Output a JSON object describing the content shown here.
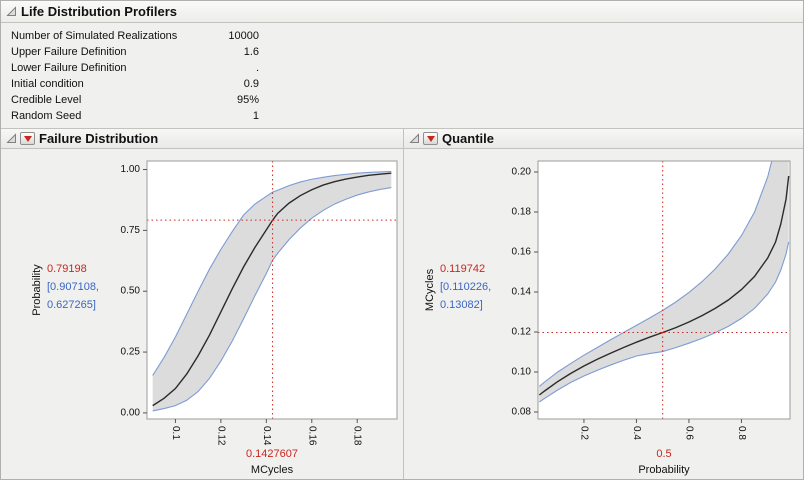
{
  "window": {
    "title": "Life Distribution Profilers"
  },
  "parameters": [
    {
      "label": "Number of Simulated Realizations",
      "value": "10000"
    },
    {
      "label": "Upper Failure Definition",
      "value": "1.6"
    },
    {
      "label": "Lower Failure Definition",
      "value": "."
    },
    {
      "label": "Initial condition",
      "value": "0.9"
    },
    {
      "label": "Credible Level",
      "value": "95%"
    },
    {
      "label": "Random Seed",
      "value": "1"
    }
  ],
  "panels": [
    {
      "title": "Failure Distribution"
    },
    {
      "title": "Quantile"
    }
  ],
  "colors": {
    "estimate_red": "#c8271f",
    "ci_blue": "#3a66c4",
    "band_fill": "#dcdcdc",
    "band_edge": "#7e9cd4",
    "curve": "#2b2b2b",
    "crosshair": "#c8271f",
    "frame": "#9b9b9b",
    "tick": "#555555"
  },
  "chart_data": [
    {
      "type": "line",
      "title": "Failure Distribution",
      "xlabel": "MCycles",
      "ylabel": "Probability",
      "xlim": [
        0.0875,
        0.1975
      ],
      "ylim": [
        -0.025,
        1.035
      ],
      "grid": false,
      "legend": "none",
      "xticks": [
        0.1,
        0.12,
        0.14,
        0.16,
        0.18
      ],
      "xtick_labels": [
        "0.1",
        "0.12",
        "0.14",
        "0.16",
        "0.18"
      ],
      "yticks": [
        0,
        0.25,
        0.5,
        0.75,
        1.0
      ],
      "ytick_labels": [
        "0.00",
        "0.25",
        "0.50",
        "0.75",
        "1.00"
      ],
      "crosshair": {
        "x": 0.1427607,
        "y": 0.79198
      },
      "labels": {
        "y_value": "0.79198",
        "y_ci_line1": "[0.907108,",
        "y_ci_line2": "0.627265]",
        "x_value": "0.1427607"
      },
      "x": [
        0.09,
        0.095,
        0.1,
        0.105,
        0.11,
        0.115,
        0.12,
        0.125,
        0.13,
        0.135,
        0.14,
        0.1427607,
        0.145,
        0.15,
        0.155,
        0.16,
        0.165,
        0.17,
        0.175,
        0.18,
        0.185,
        0.19,
        0.195
      ],
      "series": [
        {
          "name": "estimate",
          "values": [
            0.03,
            0.06,
            0.1,
            0.16,
            0.235,
            0.32,
            0.415,
            0.51,
            0.6,
            0.68,
            0.752,
            0.792,
            0.82,
            0.862,
            0.893,
            0.917,
            0.936,
            0.95,
            0.961,
            0.969,
            0.976,
            0.981,
            0.985
          ]
        },
        {
          "name": "ci_upper",
          "values": [
            0.154,
            0.228,
            0.312,
            0.406,
            0.5,
            0.591,
            0.672,
            0.745,
            0.813,
            0.858,
            0.89,
            0.907,
            0.915,
            0.934,
            0.949,
            0.96,
            0.968,
            0.975,
            0.98,
            0.985,
            0.988,
            0.99,
            0.992
          ]
        },
        {
          "name": "ci_lower",
          "values": [
            0.008,
            0.018,
            0.03,
            0.052,
            0.088,
            0.142,
            0.213,
            0.295,
            0.387,
            0.482,
            0.573,
            0.627,
            0.656,
            0.712,
            0.76,
            0.8,
            0.832,
            0.858,
            0.878,
            0.895,
            0.908,
            0.918,
            0.926
          ]
        }
      ]
    },
    {
      "type": "line",
      "title": "Quantile",
      "xlabel": "Probability",
      "ylabel": "MCycles",
      "xlim": [
        0.025,
        0.985
      ],
      "ylim": [
        0.0765,
        0.2055
      ],
      "grid": false,
      "legend": "none",
      "xticks": [
        0.2,
        0.4,
        0.6,
        0.8
      ],
      "xtick_labels": [
        "0.2",
        "0.4",
        "0.6",
        "0.8"
      ],
      "yticks": [
        0.08,
        0.1,
        0.12,
        0.14,
        0.16,
        0.18,
        0.2
      ],
      "ytick_labels": [
        "0.08",
        "0.10",
        "0.12",
        "0.14",
        "0.16",
        "0.18",
        "0.20"
      ],
      "crosshair": {
        "x": 0.5,
        "y": 0.119742
      },
      "labels": {
        "y_value": "0.119742",
        "y_ci_line1": "[0.110226,",
        "y_ci_line2": "0.13082]",
        "x_value": "0.5"
      },
      "x": [
        0.03,
        0.05,
        0.1,
        0.15,
        0.2,
        0.25,
        0.3,
        0.35,
        0.4,
        0.45,
        0.5,
        0.55,
        0.6,
        0.65,
        0.7,
        0.75,
        0.8,
        0.85,
        0.9,
        0.93,
        0.95,
        0.97,
        0.98
      ],
      "series": [
        {
          "name": "estimate",
          "values": [
            0.0885,
            0.0905,
            0.0952,
            0.0993,
            0.103,
            0.1063,
            0.1093,
            0.1122,
            0.1149,
            0.1174,
            0.119742,
            0.1222,
            0.125,
            0.1282,
            0.1318,
            0.136,
            0.1412,
            0.1478,
            0.157,
            0.165,
            0.174,
            0.1865,
            0.198
          ]
        },
        {
          "name": "ci_upper",
          "values": [
            0.0928,
            0.095,
            0.1,
            0.1043,
            0.1084,
            0.1122,
            0.116,
            0.1197,
            0.1233,
            0.127,
            0.13082,
            0.135,
            0.1398,
            0.1452,
            0.1515,
            0.159,
            0.1682,
            0.18,
            0.1975,
            0.213,
            0.228,
            0.245,
            0.26
          ]
        },
        {
          "name": "ci_lower",
          "values": [
            0.085,
            0.0868,
            0.091,
            0.0948,
            0.098,
            0.1008,
            0.1034,
            0.1058,
            0.108,
            0.1092,
            0.110226,
            0.1122,
            0.1144,
            0.1168,
            0.1196,
            0.1228,
            0.1268,
            0.1318,
            0.139,
            0.145,
            0.151,
            0.159,
            0.165
          ]
        }
      ]
    }
  ]
}
